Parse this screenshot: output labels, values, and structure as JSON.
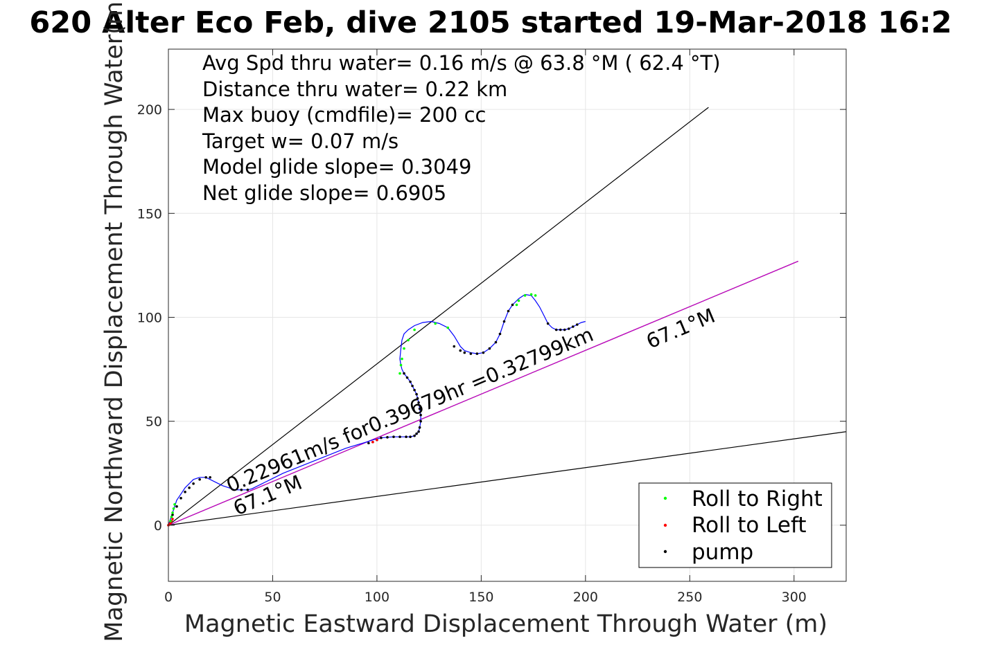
{
  "chart_data": {
    "type": "scatter",
    "title": "620 Alter Eco Feb, dive 2105 started 19-Mar-2018 16:2",
    "xlabel": "Magnetic Eastward Displacement Through Water (m)",
    "ylabel": "Magnetic Northward Displacement Through Water(m)",
    "xlim": [
      0,
      325
    ],
    "ylim": [
      -27,
      229
    ],
    "xticks": [
      0,
      50,
      100,
      150,
      200,
      250,
      300
    ],
    "yticks": [
      0,
      50,
      100,
      150,
      200
    ],
    "grid": true,
    "info_lines": [
      "Avg Spd thru water=  0.16 m/s @  63.8 °M ( 62.4 °T)",
      "Distance thru water=  0.22 km",
      "Max buoy (cmdfile)= 200 cc",
      "Target w= 0.07 m/s",
      "Model glide slope= 0.3049",
      "Net glide slope= 0.6905"
    ],
    "annotations": {
      "speed_text": "0.22961m/s for0.39679hr =0.32799km",
      "heading_near": "67.1°M",
      "heading_far": "67.1°M"
    },
    "reference_lines": [
      {
        "name": "glide-upper",
        "color": "#000000",
        "x": [
          0,
          259
        ],
        "y": [
          0,
          201
        ]
      },
      {
        "name": "glide-lower",
        "color": "#000000",
        "x": [
          0,
          325
        ],
        "y": [
          0,
          45
        ]
      },
      {
        "name": "heading-black",
        "color": "#000000",
        "x": [
          0,
          302
        ],
        "y": [
          0,
          127
        ]
      },
      {
        "name": "heading-magenta",
        "color": "#cc00cc",
        "x": [
          0,
          302
        ],
        "y": [
          0,
          127
        ]
      }
    ],
    "track": {
      "color": "#0000ff",
      "x": [
        0,
        1,
        2,
        3,
        4,
        6,
        8,
        10,
        12,
        15,
        18,
        20,
        23,
        26,
        29,
        32,
        35,
        38,
        40,
        45,
        50,
        55,
        60,
        65,
        70,
        75,
        80,
        85,
        90,
        95,
        98,
        100,
        102,
        105,
        108,
        111,
        114,
        116,
        118,
        119,
        120,
        120.5,
        121,
        121,
        120.5,
        120,
        119.5,
        119,
        118,
        117,
        116,
        114.5,
        113,
        112,
        111.5,
        111,
        111.5,
        112,
        113,
        115,
        118,
        122,
        126,
        130,
        134,
        137,
        140,
        142,
        145,
        148,
        151,
        154,
        157,
        159,
        161,
        163,
        165,
        168,
        171,
        174,
        176,
        178,
        180,
        182,
        184,
        186,
        188,
        190,
        192,
        194,
        196,
        198,
        200
      ],
      "y": [
        0,
        3,
        6,
        9,
        12,
        15,
        18,
        20,
        22,
        23,
        23,
        22,
        20.5,
        19,
        18,
        17,
        17,
        17,
        17.5,
        20,
        22.5,
        25,
        27,
        29,
        31,
        33,
        35,
        37,
        38.5,
        40,
        41,
        41.5,
        42,
        42.3,
        42.5,
        42.5,
        42.5,
        42.5,
        43,
        44,
        45,
        47,
        50,
        53,
        56,
        59,
        61,
        63,
        65,
        67,
        69,
        71,
        73,
        75,
        77,
        80,
        85,
        89,
        92,
        94,
        96,
        97.5,
        98,
        97,
        95,
        91,
        86,
        84,
        83,
        82.5,
        83,
        85,
        88,
        92,
        98,
        103,
        106,
        109,
        111,
        110.5,
        108,
        105,
        101,
        97,
        95,
        94,
        94,
        94,
        94.5,
        95.5,
        96.5,
        97.5,
        98
      ]
    },
    "series": [
      {
        "name": "Roll to Right",
        "color": "#00ff00",
        "x": [
          1,
          1.5,
          2,
          2.5,
          3,
          111,
          111.5,
          112,
          113,
          115,
          118,
          128,
          134,
          167,
          168,
          171,
          174,
          176
        ],
        "y": [
          2,
          4,
          6,
          8,
          10,
          73,
          77,
          80,
          85,
          89,
          94,
          97,
          95,
          106,
          108,
          110.5,
          111,
          110.5
        ]
      },
      {
        "name": "Roll to Left",
        "color": "#ff0000",
        "x": [
          0,
          0.5,
          1,
          1.5,
          2,
          98,
          100
        ],
        "y": [
          0,
          0.5,
          1,
          2,
          3,
          40,
          41
        ]
      },
      {
        "name": "pump",
        "color": "#000000",
        "x": [
          0,
          2,
          4,
          6,
          8,
          10,
          12,
          15,
          18,
          20,
          35,
          38,
          96,
          98,
          100,
          102,
          105,
          108,
          111,
          114,
          116,
          118,
          119,
          120,
          120.5,
          121,
          121,
          120.5,
          120,
          119.5,
          119,
          118,
          117,
          116,
          114.5,
          113,
          137,
          140,
          142,
          145,
          148,
          151,
          154,
          157,
          159,
          161,
          163,
          165,
          182,
          186,
          188,
          190,
          192,
          194,
          196
        ],
        "y": [
          0,
          5,
          9,
          13,
          16,
          18,
          20,
          22,
          23,
          23,
          17,
          17,
          39.5,
          40,
          41,
          42,
          42.3,
          42.5,
          42.5,
          42.5,
          42.5,
          43,
          44,
          45,
          47,
          50,
          53,
          56,
          59,
          61,
          63,
          65,
          67,
          69,
          71,
          73,
          86,
          84,
          83,
          82.5,
          82.5,
          83,
          85,
          88,
          92,
          98,
          103,
          106,
          97,
          94,
          94,
          94,
          94.5,
          95.5,
          96.5
        ]
      }
    ],
    "legend_position": "bottom-right"
  }
}
